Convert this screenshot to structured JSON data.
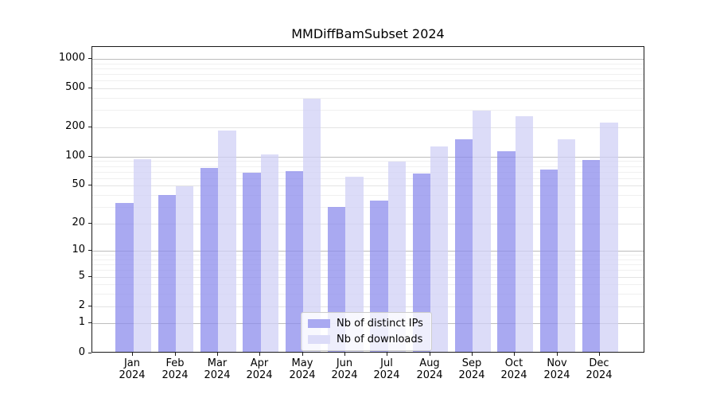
{
  "chart_data": {
    "type": "bar",
    "title": "MMDiffBamSubset 2024",
    "categories": [
      "Jan",
      "Feb",
      "Mar",
      "Apr",
      "May",
      "Jun",
      "Jul",
      "Aug",
      "Sep",
      "Oct",
      "Nov",
      "Dec"
    ],
    "year_label": "2024",
    "series": [
      {
        "name": "Nb of distinct IPs",
        "color": "#a9a9f1",
        "values": [
          32,
          39,
          75,
          67,
          69,
          29,
          34,
          65,
          147,
          110,
          71,
          90
        ]
      },
      {
        "name": "Nb of downloads",
        "color": "#dcdcf8",
        "values": [
          92,
          48,
          180,
          102,
          380,
          60,
          87,
          123,
          290,
          253,
          148,
          220
        ]
      }
    ],
    "xlabel": "",
    "ylabel": "",
    "y_scale": "log1p",
    "y_ticks": [
      0,
      1,
      2,
      5,
      10,
      20,
      50,
      100,
      200,
      500,
      1000
    ],
    "ylim": [
      0,
      1340
    ],
    "grid": true,
    "legend_position": "lower center",
    "colors": {
      "decade_gridline": "#bdbdbd",
      "labeled_gridline": "#e3e3e3",
      "minor_gridline": "#f0f0f0",
      "spine": "#1a1a1a"
    }
  }
}
